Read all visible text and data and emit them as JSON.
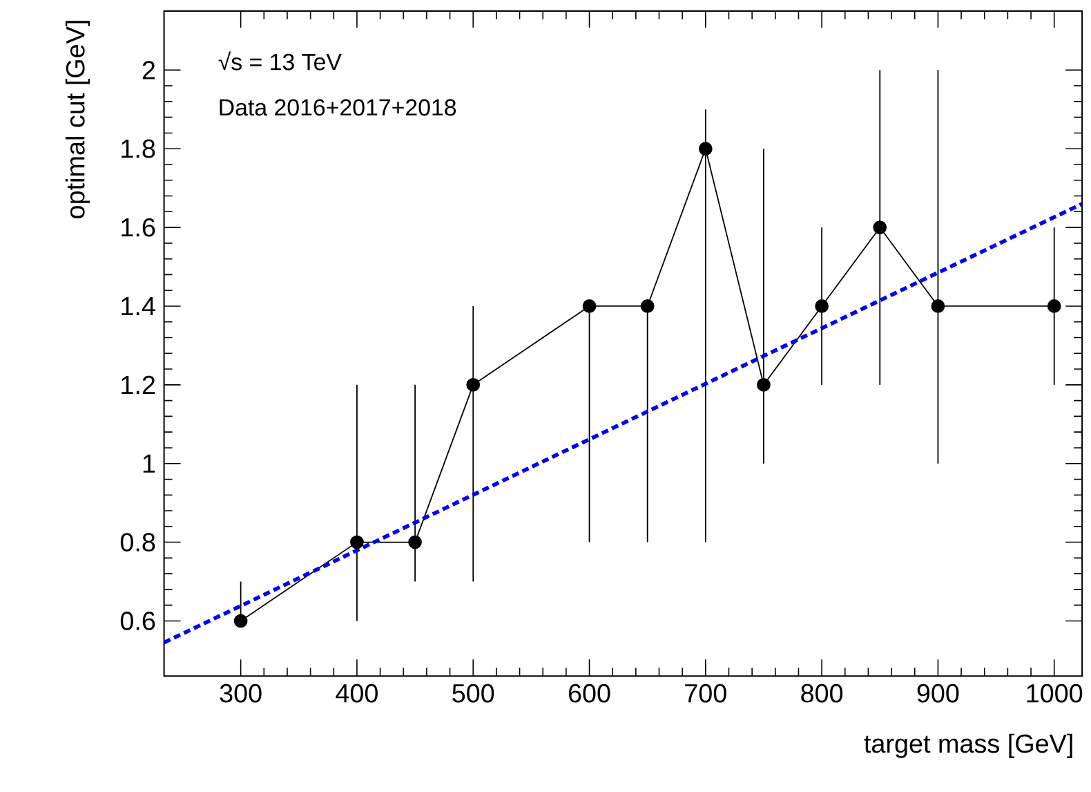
{
  "chart_data": {
    "type": "line",
    "xlabel": "target mass [GeV]",
    "ylabel": "optimal cut [GeV]",
    "annotations": [
      "√s = 13 TeV",
      "Data 2016+2017+2018"
    ],
    "xlim": [
      234,
      1024
    ],
    "ylim": [
      0.46,
      2.15
    ],
    "xticks": [
      300,
      400,
      500,
      600,
      700,
      800,
      900,
      1000
    ],
    "yticks": [
      0.6,
      0.8,
      1,
      1.2,
      1.4,
      1.6,
      1.8,
      2
    ],
    "grid": false,
    "legend": false,
    "series": [
      {
        "color": "#000000",
        "marker": "circle",
        "line_style": "solid",
        "x": [
          300,
          400,
          450,
          500,
          600,
          650,
          700,
          750,
          800,
          850,
          900,
          1000
        ],
        "values": [
          0.6,
          0.8,
          0.8,
          1.2,
          1.4,
          1.4,
          1.8,
          1.2,
          1.4,
          1.6,
          1.4,
          1.4
        ],
        "errors": [
          [
            0.6,
            0.7
          ],
          [
            0.6,
            1.2
          ],
          [
            0.7,
            1.2
          ],
          [
            0.7,
            1.4
          ],
          [
            0.8,
            1.4
          ],
          [
            0.8,
            1.4
          ],
          [
            0.8,
            1.9
          ],
          [
            1.0,
            1.8
          ],
          [
            1.2,
            1.6
          ],
          [
            1.2,
            2.0
          ],
          [
            1.0,
            2.0
          ],
          [
            1.2,
            1.6
          ]
        ]
      },
      {
        "color": "#0000ff",
        "marker": "none",
        "line_style": "dashed",
        "x": [
          234,
          1024
        ],
        "values": [
          0.545,
          1.66
        ]
      }
    ]
  }
}
